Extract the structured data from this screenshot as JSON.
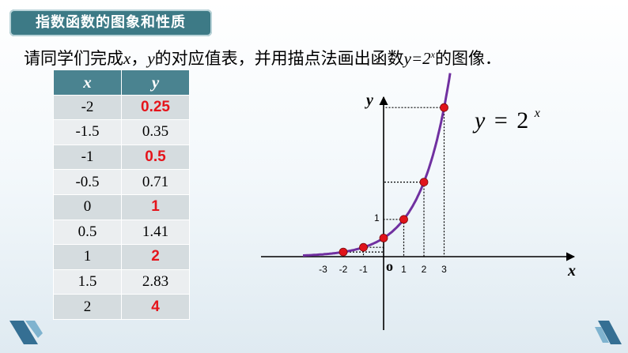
{
  "header": {
    "title": "指数函数的图象和性质"
  },
  "instruction": {
    "pre": "请同学们完成",
    "x": "x",
    "comma": "，",
    "y": "y",
    "mid": "的对应值表，并用描点法画出函数",
    "func_base": "y=2",
    "func_exp": "x",
    "post": "的图像．"
  },
  "table": {
    "headers": [
      "x",
      "y"
    ],
    "rows": [
      {
        "x": "-2",
        "y": "0.25",
        "highlight": true
      },
      {
        "x": "-1.5",
        "y": "0.35",
        "highlight": false
      },
      {
        "x": "-1",
        "y": "0.5",
        "highlight": true
      },
      {
        "x": "-0.5",
        "y": "0.71",
        "highlight": false
      },
      {
        "x": "0",
        "y": "1",
        "highlight": true
      },
      {
        "x": "0.5",
        "y": "1.41",
        "highlight": false
      },
      {
        "x": "1",
        "y": "2",
        "highlight": true
      },
      {
        "x": "1.5",
        "y": "2.83",
        "highlight": false
      },
      {
        "x": "2",
        "y": "4",
        "highlight": true
      }
    ]
  },
  "graph": {
    "y_axis_label": "y",
    "x_axis_label": "x",
    "origin_label": "o",
    "y_tick_label": "1",
    "x_tick_labels": [
      "-3",
      "-2",
      "-1",
      "1",
      "2",
      "3"
    ],
    "curve_label_lhs": "y",
    "curve_label_eq": "=",
    "curve_label_base": "2",
    "curve_label_exp": "x",
    "curve_color": "#7030a0",
    "point_color": "#e0141b",
    "points": [
      {
        "x": -2,
        "y": 0.25
      },
      {
        "x": -1,
        "y": 0.5
      },
      {
        "x": 0,
        "y": 1
      },
      {
        "x": 1,
        "y": 2
      },
      {
        "x": 2,
        "y": 4
      },
      {
        "x": 3,
        "y": 8
      }
    ]
  }
}
